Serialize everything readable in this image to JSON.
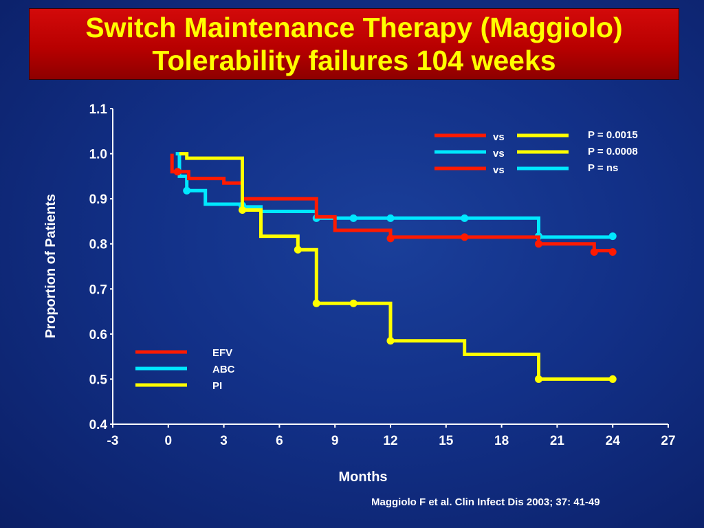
{
  "slide": {
    "title_line1": "Switch Maintenance Therapy (Maggiolo)",
    "title_line2": "Tolerability failures 104 weeks",
    "citation": "Maggiolo F et al. Clin Infect Dis 2003; 37: 41-49"
  },
  "colors": {
    "EFV": "#ff1a00",
    "ABC": "#00e8ff",
    "PI": "#ffff00",
    "background": "#123087",
    "title_bg": "#c00000",
    "title_text": "#ffff00"
  },
  "chart_data": {
    "type": "line",
    "step": true,
    "xlabel": "Months",
    "ylabel": "Proportion of Patients",
    "xlim": [
      -3,
      27
    ],
    "ylim": [
      0.4,
      1.1
    ],
    "xticks": [
      "-3",
      "0",
      "3",
      "6",
      "9",
      "12",
      "15",
      "18",
      "21",
      "24",
      "27"
    ],
    "yticks": [
      "0.4",
      "0.5",
      "0.6",
      "0.7",
      "0.8",
      "0.9",
      "1.0",
      "1.1"
    ],
    "xtick_values": [
      -3,
      0,
      3,
      6,
      9,
      12,
      15,
      18,
      21,
      24,
      27
    ],
    "ytick_values": [
      0.4,
      0.5,
      0.6,
      0.7,
      0.8,
      0.9,
      1.0,
      1.1
    ],
    "grid": false,
    "legend_position": "bottom-left",
    "series": [
      {
        "name": "EFV",
        "color_key": "EFV",
        "points": [
          [
            0.2,
            1.0
          ],
          [
            0.2,
            0.96
          ],
          [
            1.1,
            0.96
          ],
          [
            1.1,
            0.945
          ],
          [
            3,
            0.945
          ],
          [
            3,
            0.935
          ],
          [
            4,
            0.935
          ],
          [
            4,
            0.9
          ],
          [
            8,
            0.9
          ],
          [
            8,
            0.86
          ],
          [
            9,
            0.86
          ],
          [
            9,
            0.83
          ],
          [
            12,
            0.83
          ],
          [
            12,
            0.815
          ],
          [
            16,
            0.815
          ],
          [
            20,
            0.815
          ],
          [
            20,
            0.8
          ],
          [
            23,
            0.8
          ],
          [
            23,
            0.785
          ],
          [
            24,
            0.785
          ]
        ],
        "markers": [
          [
            0.5,
            0.96
          ],
          [
            12,
            0.812
          ],
          [
            16,
            0.815
          ],
          [
            20,
            0.8
          ],
          [
            23,
            0.782
          ],
          [
            24,
            0.782
          ]
        ]
      },
      {
        "name": "ABC",
        "color_key": "ABC",
        "points": [
          [
            0.4,
            1.0
          ],
          [
            0.6,
            1.0
          ],
          [
            0.6,
            0.95
          ],
          [
            1,
            0.95
          ],
          [
            1,
            0.918
          ],
          [
            2,
            0.918
          ],
          [
            2,
            0.888
          ],
          [
            4,
            0.888
          ],
          [
            4,
            0.882
          ],
          [
            5,
            0.882
          ],
          [
            5,
            0.872
          ],
          [
            8,
            0.872
          ],
          [
            8,
            0.857
          ],
          [
            20,
            0.857
          ],
          [
            20,
            0.815
          ],
          [
            24,
            0.815
          ]
        ],
        "markers": [
          [
            1,
            0.918
          ],
          [
            4,
            0.885
          ],
          [
            8,
            0.857
          ],
          [
            10,
            0.857
          ],
          [
            12,
            0.857
          ],
          [
            16,
            0.857
          ],
          [
            20,
            0.817
          ],
          [
            24,
            0.817
          ]
        ]
      },
      {
        "name": "PI",
        "color_key": "PI",
        "points": [
          [
            0.6,
            1.0
          ],
          [
            1,
            1.0
          ],
          [
            1,
            0.99
          ],
          [
            4,
            0.99
          ],
          [
            4,
            0.875
          ],
          [
            5,
            0.875
          ],
          [
            5,
            0.817
          ],
          [
            7,
            0.817
          ],
          [
            7,
            0.787
          ],
          [
            8,
            0.787
          ],
          [
            8,
            0.668
          ],
          [
            12,
            0.668
          ],
          [
            12,
            0.585
          ],
          [
            16,
            0.585
          ],
          [
            16,
            0.555
          ],
          [
            20,
            0.555
          ],
          [
            20,
            0.5
          ],
          [
            24,
            0.5
          ]
        ],
        "markers": [
          [
            4,
            0.875
          ],
          [
            7,
            0.787
          ],
          [
            8,
            0.668
          ],
          [
            10,
            0.668
          ],
          [
            12,
            0.585
          ],
          [
            20,
            0.5
          ],
          [
            24,
            0.5
          ]
        ]
      }
    ],
    "comparisons": [
      {
        "left": "EFV",
        "right": "PI",
        "vs": "vs",
        "p": "P = 0.0015"
      },
      {
        "left": "ABC",
        "right": "PI",
        "vs": "vs",
        "p": "P = 0.0008"
      },
      {
        "left": "EFV",
        "right": "ABC",
        "vs": "vs",
        "p": "P = ns"
      }
    ]
  }
}
